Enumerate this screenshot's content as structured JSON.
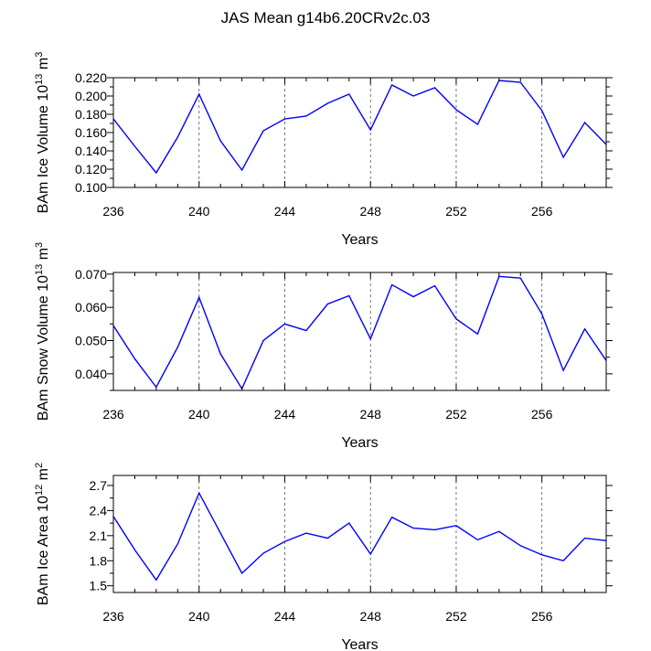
{
  "figure": {
    "title": "JAS Mean g14b6.20CRv2c.03"
  },
  "colors": {
    "line": "#0000ff",
    "axis": "#000000",
    "grid": "#555555"
  },
  "chart_data": [
    {
      "type": "line",
      "title": "",
      "xlabel": "Years",
      "ylabel": {
        "base": "BAm Ice Volume 10",
        "exp1": "13",
        "mid": " m",
        "exp2": "3"
      },
      "xlim": [
        236,
        259
      ],
      "ylim": [
        0.1,
        0.22
      ],
      "x_ticks": [
        "236",
        "240",
        "244",
        "248",
        "252",
        "256"
      ],
      "y_ticks": [
        "0.100",
        "0.120",
        "0.140",
        "0.160",
        "0.180",
        "0.200",
        "0.220"
      ],
      "grid": "dashed vertical at labeled x ticks",
      "series": [
        {
          "name": "BAm Ice Volume",
          "x": [
            236,
            237,
            238,
            239,
            240,
            241,
            242,
            243,
            244,
            245,
            246,
            247,
            248,
            249,
            250,
            251,
            252,
            253,
            254,
            255,
            256,
            257,
            258,
            259
          ],
          "values": [
            0.175,
            0.145,
            0.116,
            0.155,
            0.202,
            0.151,
            0.119,
            0.162,
            0.175,
            0.178,
            0.192,
            0.202,
            0.163,
            0.212,
            0.2,
            0.209,
            0.185,
            0.169,
            0.217,
            0.215,
            0.184,
            0.133,
            0.171,
            0.147
          ]
        }
      ]
    },
    {
      "type": "line",
      "title": "",
      "xlabel": "Years",
      "ylabel": {
        "base": "BAm Snow Volume 10",
        "exp1": "13",
        "mid": " m",
        "exp2": "3"
      },
      "xlim": [
        236,
        259
      ],
      "ylim": [
        0.035,
        0.0705
      ],
      "x_ticks": [
        "236",
        "240",
        "244",
        "248",
        "252",
        "256"
      ],
      "y_ticks": [
        "0.040",
        "0.050",
        "0.060",
        "0.070"
      ],
      "grid": "dashed vertical at labeled x ticks",
      "series": [
        {
          "name": "BAm Snow Volume",
          "x": [
            236,
            237,
            238,
            239,
            240,
            241,
            242,
            243,
            244,
            245,
            246,
            247,
            248,
            249,
            250,
            251,
            252,
            253,
            254,
            255,
            256,
            257,
            258,
            259
          ],
          "values": [
            0.0545,
            0.0445,
            0.036,
            0.048,
            0.063,
            0.046,
            0.0355,
            0.05,
            0.055,
            0.053,
            0.061,
            0.0635,
            0.0505,
            0.0668,
            0.0632,
            0.0665,
            0.0565,
            0.052,
            0.0693,
            0.0688,
            0.058,
            0.041,
            0.0535,
            0.044
          ]
        }
      ]
    },
    {
      "type": "line",
      "title": "",
      "xlabel": "Years",
      "ylabel": {
        "base": "BAm Ice Area 10",
        "exp1": "12",
        "mid": " m",
        "exp2": "2"
      },
      "xlim": [
        236,
        259
      ],
      "ylim": [
        1.42,
        2.82
      ],
      "x_ticks": [
        "236",
        "240",
        "244",
        "248",
        "252",
        "256"
      ],
      "y_ticks": [
        "1.5",
        "1.8",
        "2.1",
        "2.4",
        "2.7"
      ],
      "grid": "dashed vertical at labeled x ticks",
      "series": [
        {
          "name": "BAm Ice Area",
          "x": [
            236,
            237,
            238,
            239,
            240,
            241,
            242,
            243,
            244,
            245,
            246,
            247,
            248,
            249,
            250,
            251,
            252,
            253,
            254,
            255,
            256,
            257,
            258,
            259
          ],
          "values": [
            2.33,
            1.93,
            1.57,
            2.0,
            2.61,
            2.13,
            1.65,
            1.89,
            2.03,
            2.13,
            2.07,
            2.25,
            1.88,
            2.32,
            2.19,
            2.17,
            2.22,
            2.05,
            2.15,
            1.98,
            1.87,
            1.8,
            2.07,
            2.04
          ]
        }
      ]
    }
  ]
}
